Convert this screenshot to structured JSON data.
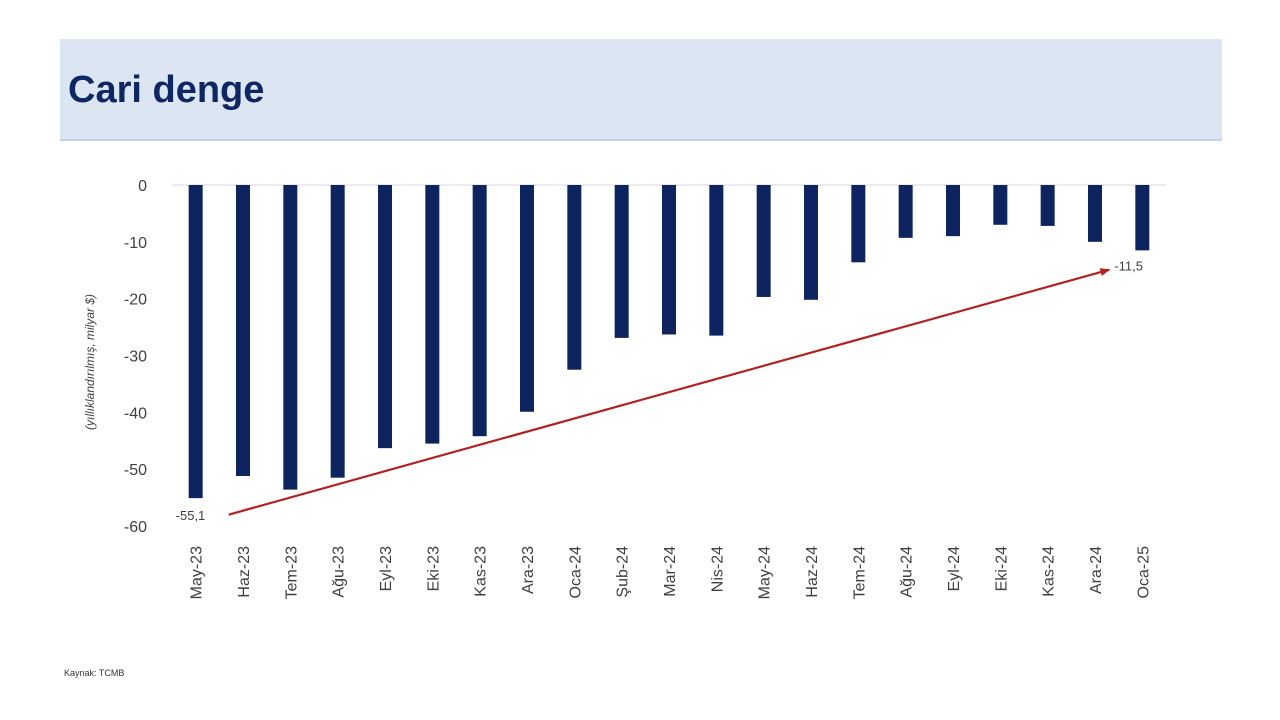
{
  "header": {
    "title": "Cari denge"
  },
  "source": "Kaynak: TCMB",
  "colors": {
    "bar": "#0d2460",
    "arrow": "#b22222",
    "band": "#dce6f2",
    "title": "#0d2764"
  },
  "chart_data": {
    "type": "bar",
    "title": "",
    "xlabel": "",
    "ylabel": "(yıllıklandırılmış, milyar $)",
    "ylim": [
      -60,
      0
    ],
    "yticks": [
      0,
      -10,
      -20,
      -30,
      -40,
      -50,
      -60
    ],
    "grid": false,
    "categories": [
      "May-23",
      "Haz-23",
      "Tem-23",
      "Ağu-23",
      "Eyl-23",
      "Eki-23",
      "Kas-23",
      "Ara-23",
      "Oca-24",
      "Şub-24",
      "Mar-24",
      "Nis-24",
      "May-24",
      "Haz-24",
      "Tem-24",
      "Ağu-24",
      "Eyl-24",
      "Eki-24",
      "Kas-24",
      "Ara-24",
      "Oca-25"
    ],
    "values": [
      -55.1,
      -51.2,
      -53.6,
      -51.5,
      -46.3,
      -45.5,
      -44.2,
      -39.9,
      -32.5,
      -26.9,
      -26.3,
      -26.5,
      -19.7,
      -20.2,
      -13.6,
      -9.3,
      -9.0,
      -7.0,
      -7.2,
      -10.0,
      -11.5
    ],
    "annotations": [
      {
        "text": "-55,1",
        "category": "May-23",
        "value": -55.1
      },
      {
        "text": "-11,5",
        "category": "Oca-25",
        "value": -11.5
      }
    ],
    "trend_arrow": {
      "from": {
        "category": "May-23",
        "value": -58.0
      },
      "to": {
        "category": "Oca-25",
        "value": -14.9
      }
    }
  }
}
